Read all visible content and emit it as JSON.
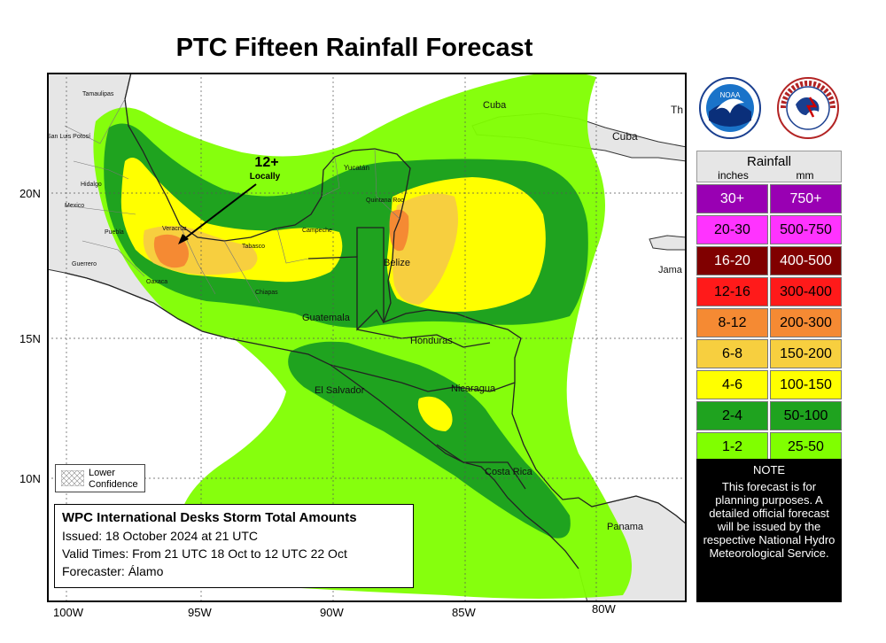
{
  "title": "PTC Fifteen Rainfall Forecast",
  "lon_labels": [
    "100W",
    "95W",
    "90W",
    "85W",
    "80W"
  ],
  "lat_labels": [
    "20N",
    "15N",
    "10N"
  ],
  "annotation": {
    "value": "12+",
    "sub": "Locally"
  },
  "place_names": {
    "tamaulipas": "Tamaulipas",
    "san_luis": "San Luis Potosí",
    "hidalgo": "Hidalgo",
    "mexico": "Mexico",
    "guerrero": "Guerrero",
    "puebla": "Puebla",
    "oaxaca": "Oaxaca",
    "veracruz": "Veracruz",
    "tabasco": "Tabasco",
    "campeche": "Campeche",
    "yucatan": "Yucatán",
    "quintana_roo": "Quintana Roo",
    "chiapas": "Chiapas",
    "belize": "Belize",
    "guatemala": "Guatemala",
    "honduras": "Honduras",
    "el_salvador": "El Salvador",
    "nicaragua": "Nicaragua",
    "costa_rica": "Costa Rica",
    "panama": "Panama",
    "cuba1": "Cuba",
    "cuba2": "Cuba",
    "jamaica": "Jama",
    "th": "Th"
  },
  "low_confidence": {
    "line1": "Lower",
    "line2": "Confidence"
  },
  "info": {
    "heading": "WPC International Desks Storm Total Amounts",
    "issued": "Issued:  18 October 2024 at 21 UTC",
    "valid": "Valid Times:  From 21 UTC 18 Oct  to 12 UTC 22 Oct",
    "forecaster": "Forecaster: Álamo"
  },
  "logos": {
    "noaa": "NOAA",
    "nws": "NATIONAL WEATHER SERVICE"
  },
  "legend": {
    "title": "Rainfall",
    "unit_in": "inches",
    "unit_mm": "mm",
    "rows": [
      {
        "inches": "30+",
        "mm": "750+",
        "color": "#9900b3",
        "text": "#ffffff"
      },
      {
        "inches": "20-30",
        "mm": "500-750",
        "color": "#ff33ff",
        "text": "#000000"
      },
      {
        "inches": "16-20",
        "mm": "400-500",
        "color": "#800000",
        "text": "#ffffff"
      },
      {
        "inches": "12-16",
        "mm": "300-400",
        "color": "#ff1a1a",
        "text": "#000000"
      },
      {
        "inches": "8-12",
        "mm": "200-300",
        "color": "#f58a33",
        "text": "#000000"
      },
      {
        "inches": "6-8",
        "mm": "150-200",
        "color": "#f7cf3f",
        "text": "#000000"
      },
      {
        "inches": "4-6",
        "mm": "100-150",
        "color": "#ffff00",
        "text": "#000000"
      },
      {
        "inches": "2-4",
        "mm": "50-100",
        "color": "#1fa31f",
        "text": "#000000"
      },
      {
        "inches": "1-2",
        "mm": "25-50",
        "color": "#80ff00",
        "text": "#000000"
      }
    ]
  },
  "note": {
    "heading": "NOTE",
    "text": "This forecast is for planning purposes. A detailed official forecast will be issued by the respective National Hydro Meteorological Service."
  },
  "colors": {
    "land": "#e6e6e6",
    "ocean": "#ffffff",
    "green_light": "#80ff00",
    "green_dark": "#1fa31f",
    "yellow": "#ffff00",
    "orange_light": "#f7cf3f",
    "orange": "#f58a33"
  }
}
